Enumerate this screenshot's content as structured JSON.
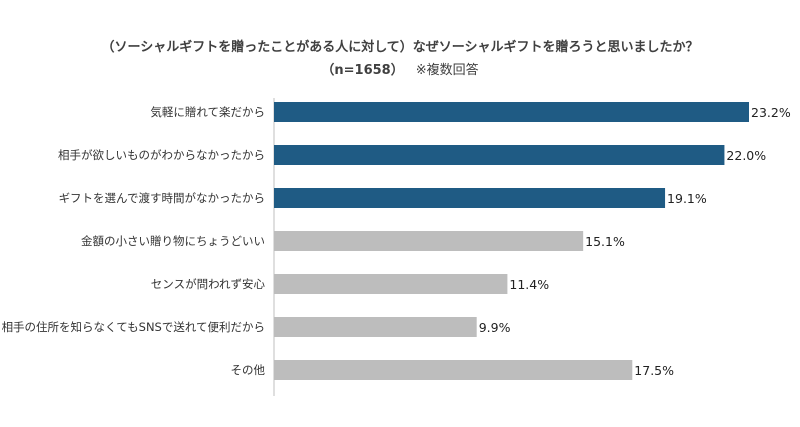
{
  "chart_data": {
    "type": "bar",
    "orientation": "horizontal",
    "title": "（ソーシャルギフトを贈ったことがある人に対して）なぜソーシャルギフトを贈ろうと思いましたか？",
    "subtitle": "（n=1658）",
    "note": "※複数回答",
    "categories": [
      "気軽に贈れて楽だから",
      "相手が欲しいものがわからなかったから",
      "ギフトを選んで渡す時間がなかったから",
      "金額の小さい贈り物にちょうどいい",
      "センスが問われず安心",
      "相手の住所を知らなくてもSNSで送れて便利だから",
      "その他"
    ],
    "values": [
      23.2,
      22.0,
      19.1,
      15.1,
      11.4,
      9.9,
      17.5
    ],
    "value_labels": [
      "23.2%",
      "22.0%",
      "19.1%",
      "15.1%",
      "11.4%",
      "9.9%",
      "17.5%"
    ],
    "bar_colors": [
      "#1f5b84",
      "#1f5b84",
      "#1f5b84",
      "#bdbdbd",
      "#bdbdbd",
      "#bdbdbd",
      "#bdbdbd"
    ],
    "xlim": [
      0,
      23.2
    ],
    "grid": false,
    "legend": "none"
  }
}
